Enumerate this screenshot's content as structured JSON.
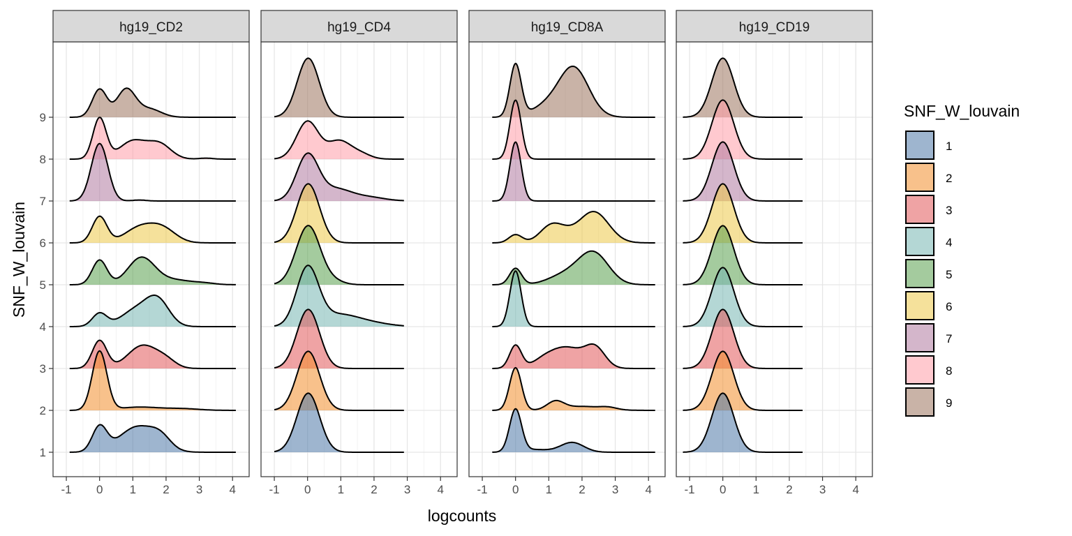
{
  "chart_data": {
    "type": "ridgeline",
    "xlabel": "logcounts",
    "ylabel": "SNF_W_louvain",
    "x_ticks": [
      "-1",
      "0",
      "1",
      "2",
      "3",
      "4"
    ],
    "y_ticks": [
      "1",
      "2",
      "3",
      "4",
      "5",
      "6",
      "7",
      "8",
      "9"
    ],
    "xlim": [
      -1.4,
      4.5
    ],
    "grid": true,
    "legend": {
      "title": "SNF_W_louvain",
      "position": "right",
      "items": [
        {
          "label": "1",
          "color": "#4E79A7"
        },
        {
          "label": "2",
          "color": "#F28E2B"
        },
        {
          "label": "3",
          "color": "#E15759"
        },
        {
          "label": "4",
          "color": "#76B7B2"
        },
        {
          "label": "5",
          "color": "#59A14F"
        },
        {
          "label": "6",
          "color": "#EDC948"
        },
        {
          "label": "7",
          "color": "#B07AA1"
        },
        {
          "label": "8",
          "color": "#FF9DA7"
        },
        {
          "label": "9",
          "color": "#9C755F"
        }
      ]
    },
    "facets": [
      {
        "name": "hg19_CD2",
        "range": [
          -0.9,
          4.1
        ],
        "clusters": [
          {
            "cluster": "1",
            "bumps": [
              [
                0,
                0.22,
                0.75
              ],
              [
                1.15,
                0.55,
                0.78
              ],
              [
                1.85,
                0.3,
                0.3
              ]
            ]
          },
          {
            "cluster": "2",
            "bumps": [
              [
                0,
                0.22,
                1.8
              ],
              [
                1.2,
                0.6,
                0.1
              ],
              [
                2.5,
                0.5,
                0.05
              ]
            ]
          },
          {
            "cluster": "3",
            "bumps": [
              [
                0,
                0.22,
                0.85
              ],
              [
                1.3,
                0.45,
                0.7
              ],
              [
                2.0,
                0.3,
                0.2
              ]
            ]
          },
          {
            "cluster": "4",
            "bumps": [
              [
                0,
                0.22,
                0.4
              ],
              [
                1.1,
                0.45,
                0.5
              ],
              [
                1.75,
                0.35,
                0.75
              ]
            ]
          },
          {
            "cluster": "5",
            "bumps": [
              [
                0,
                0.22,
                0.75
              ],
              [
                1.25,
                0.4,
                0.8
              ],
              [
                2.2,
                0.6,
                0.15
              ],
              [
                3.2,
                0.3,
                0.03
              ]
            ]
          },
          {
            "cluster": "6",
            "bumps": [
              [
                0,
                0.22,
                0.8
              ],
              [
                1.2,
                0.45,
                0.45
              ],
              [
                1.9,
                0.4,
                0.4
              ]
            ]
          },
          {
            "cluster": "7",
            "bumps": [
              [
                0,
                0.25,
                1.75
              ],
              [
                1.2,
                0.2,
                0.03
              ]
            ]
          },
          {
            "cluster": "8",
            "bumps": [
              [
                0,
                0.2,
                1.25
              ],
              [
                1.0,
                0.4,
                0.55
              ],
              [
                1.8,
                0.35,
                0.45
              ],
              [
                3.2,
                0.2,
                0.03
              ]
            ]
          },
          {
            "cluster": "9",
            "bumps": [
              [
                0,
                0.22,
                0.85
              ],
              [
                0.8,
                0.28,
                0.85
              ],
              [
                1.5,
                0.35,
                0.25
              ]
            ]
          }
        ]
      },
      {
        "name": "hg19_CD4",
        "range": [
          -1.0,
          2.9
        ],
        "clusters": [
          {
            "cluster": "1",
            "bumps": [
              [
                0.02,
                0.34,
                1.8
              ]
            ]
          },
          {
            "cluster": "2",
            "bumps": [
              [
                0.02,
                0.34,
                1.8
              ]
            ]
          },
          {
            "cluster": "3",
            "bumps": [
              [
                0.02,
                0.34,
                1.8
              ]
            ]
          },
          {
            "cluster": "4",
            "bumps": [
              [
                0.0,
                0.33,
                1.75
              ],
              [
                0.9,
                0.6,
                0.35
              ],
              [
                1.9,
                0.6,
                0.1
              ]
            ]
          },
          {
            "cluster": "5",
            "bumps": [
              [
                0.02,
                0.36,
                1.8
              ],
              [
                0.8,
                0.3,
                0.1
              ]
            ]
          },
          {
            "cluster": "6",
            "bumps": [
              [
                0.02,
                0.34,
                1.8
              ]
            ]
          },
          {
            "cluster": "7",
            "bumps": [
              [
                0.0,
                0.33,
                1.4
              ],
              [
                0.85,
                0.45,
                0.35
              ],
              [
                1.8,
                0.5,
                0.12
              ]
            ]
          },
          {
            "cluster": "8",
            "bumps": [
              [
                0.0,
                0.33,
                1.15
              ],
              [
                0.95,
                0.35,
                0.55
              ],
              [
                1.6,
                0.3,
                0.15
              ]
            ]
          },
          {
            "cluster": "9",
            "bumps": [
              [
                0.02,
                0.33,
                1.8
              ]
            ]
          }
        ]
      },
      {
        "name": "hg19_CD8A",
        "range": [
          -0.7,
          4.2
        ],
        "clusters": [
          {
            "cluster": "1",
            "bumps": [
              [
                0,
                0.18,
                1.3
              ],
              [
                1.7,
                0.35,
                0.3
              ],
              [
                0.6,
                0.4,
                0.08
              ]
            ]
          },
          {
            "cluster": "2",
            "bumps": [
              [
                0,
                0.18,
                1.3
              ],
              [
                1.2,
                0.25,
                0.25
              ],
              [
                2.0,
                0.6,
                0.12
              ],
              [
                2.8,
                0.25,
                0.06
              ]
            ]
          },
          {
            "cluster": "3",
            "bumps": [
              [
                0,
                0.18,
                0.7
              ],
              [
                1.5,
                0.55,
                0.65
              ],
              [
                2.4,
                0.3,
                0.55
              ],
              [
                0.8,
                0.3,
                0.1
              ]
            ]
          },
          {
            "cluster": "4",
            "bumps": [
              [
                0,
                0.17,
                1.7
              ]
            ]
          },
          {
            "cluster": "5",
            "bumps": [
              [
                0,
                0.18,
                0.5
              ],
              [
                2.35,
                0.45,
                0.95
              ],
              [
                1.5,
                0.5,
                0.3
              ]
            ]
          },
          {
            "cluster": "6",
            "bumps": [
              [
                0,
                0.2,
                0.25
              ],
              [
                1.1,
                0.35,
                0.55
              ],
              [
                2.35,
                0.45,
                0.95
              ],
              [
                1.6,
                0.3,
                0.1
              ]
            ]
          },
          {
            "cluster": "7",
            "bumps": [
              [
                0,
                0.17,
                1.8
              ]
            ]
          },
          {
            "cluster": "8",
            "bumps": [
              [
                0,
                0.17,
                1.8
              ]
            ]
          },
          {
            "cluster": "9",
            "bumps": [
              [
                0,
                0.17,
                1.6
              ],
              [
                1.75,
                0.45,
                1.5
              ],
              [
                0.9,
                0.45,
                0.3
              ]
            ]
          }
        ]
      },
      {
        "name": "hg19_CD19",
        "range": [
          -1.2,
          2.4
        ],
        "clusters": [
          {
            "cluster": "1",
            "bumps": [
              [
                0,
                0.33,
                1.8
              ]
            ]
          },
          {
            "cluster": "2",
            "bumps": [
              [
                0,
                0.33,
                1.8
              ]
            ]
          },
          {
            "cluster": "3",
            "bumps": [
              [
                0,
                0.33,
                1.8
              ]
            ]
          },
          {
            "cluster": "4",
            "bumps": [
              [
                0,
                0.33,
                1.8
              ]
            ]
          },
          {
            "cluster": "5",
            "bumps": [
              [
                0,
                0.33,
                1.8
              ]
            ]
          },
          {
            "cluster": "6",
            "bumps": [
              [
                0,
                0.33,
                1.8
              ]
            ]
          },
          {
            "cluster": "7",
            "bumps": [
              [
                0,
                0.33,
                1.8
              ]
            ]
          },
          {
            "cluster": "8",
            "bumps": [
              [
                0,
                0.33,
                1.8
              ]
            ]
          },
          {
            "cluster": "9",
            "bumps": [
              [
                0,
                0.33,
                1.8
              ]
            ]
          }
        ]
      }
    ]
  }
}
